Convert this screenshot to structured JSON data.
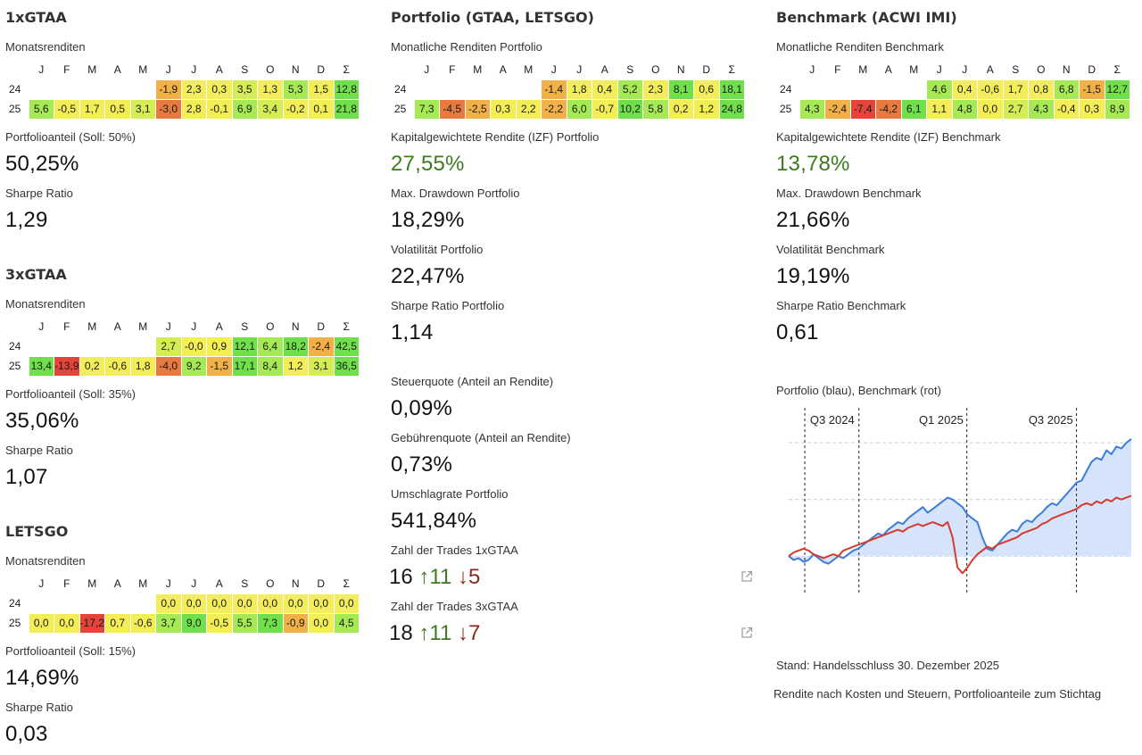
{
  "months": [
    "J",
    "F",
    "M",
    "A",
    "M",
    "J",
    "J",
    "A",
    "S",
    "O",
    "N",
    "D",
    "Σ"
  ],
  "heat_colors": {
    "deep_red": "#e4453a",
    "red_orange": "#e8793f",
    "orange": "#f1b048",
    "yellow": "#f3ee57",
    "yellow_green": "#d5ec55",
    "light_green": "#a5e955",
    "green": "#6fe04a"
  },
  "gtaa1": {
    "title": "1xGTAA",
    "monthly_label": "Monatsrenditen",
    "rows": [
      {
        "year": "24",
        "cells": [
          "",
          "",
          "",
          "",
          "",
          "-1,9",
          "2,3",
          "0,3",
          "3,5",
          "1,3",
          "5,3",
          "1,5",
          "12,8"
        ],
        "colors": [
          "",
          "",
          "",
          "",
          "",
          "orange",
          "yellow",
          "yellow",
          "yellow_green",
          "yellow",
          "light_green",
          "yellow",
          "green"
        ]
      },
      {
        "year": "25",
        "cells": [
          "5,6",
          "-0,5",
          "1,7",
          "0,5",
          "3,1",
          "-3,0",
          "2,8",
          "-0,1",
          "6,9",
          "3,4",
          "-0,2",
          "0,1",
          "21,8"
        ],
        "colors": [
          "light_green",
          "yellow",
          "yellow",
          "yellow",
          "yellow_green",
          "red_orange",
          "yellow",
          "yellow",
          "light_green",
          "yellow_green",
          "yellow",
          "yellow",
          "green"
        ]
      }
    ],
    "share_label": "Portfolioanteil (Soll: 50%)",
    "share_value": "50,25%",
    "sharpe_label": "Sharpe Ratio",
    "sharpe_value": "1,29"
  },
  "gtaa3": {
    "title": "3xGTAA",
    "monthly_label": "Monatsrenditen",
    "rows": [
      {
        "year": "24",
        "cells": [
          "",
          "",
          "",
          "",
          "",
          "2,7",
          "-0,0",
          "0,9",
          "12,1",
          "6,4",
          "18,2",
          "-2,4",
          "42,5"
        ],
        "colors": [
          "",
          "",
          "",
          "",
          "",
          "yellow_green",
          "yellow",
          "yellow",
          "green",
          "light_green",
          "green",
          "orange",
          "green"
        ]
      },
      {
        "year": "25",
        "cells": [
          "13,4",
          "-13,9",
          "0,2",
          "-0,6",
          "1,8",
          "-4,0",
          "9,2",
          "-1,5",
          "17,1",
          "8,4",
          "1,2",
          "3,1",
          "36,5"
        ],
        "colors": [
          "green",
          "deep_red",
          "yellow",
          "yellow",
          "yellow",
          "red_orange",
          "light_green",
          "orange",
          "green",
          "light_green",
          "yellow",
          "yellow_green",
          "green"
        ]
      }
    ],
    "share_label": "Portfolioanteil (Soll: 35%)",
    "share_value": "35,06%",
    "sharpe_label": "Sharpe Ratio",
    "sharpe_value": "1,07"
  },
  "letsgo": {
    "title": "LETSGO",
    "monthly_label": "Monatsrenditen",
    "rows": [
      {
        "year": "24",
        "cells": [
          "",
          "",
          "",
          "",
          "",
          "0,0",
          "0,0",
          "0,0",
          "0,0",
          "0,0",
          "0,0",
          "0,0",
          "0,0"
        ],
        "colors": [
          "",
          "",
          "",
          "",
          "",
          "yellow",
          "yellow",
          "yellow",
          "yellow",
          "yellow",
          "yellow",
          "yellow",
          "yellow"
        ]
      },
      {
        "year": "25",
        "cells": [
          "0,0",
          "0,0",
          "-17,2",
          "0,7",
          "-0,6",
          "3,7",
          "9,0",
          "-0,5",
          "5,5",
          "7,3",
          "-0,9",
          "0,0",
          "4,5"
        ],
        "colors": [
          "yellow",
          "yellow",
          "deep_red",
          "yellow",
          "yellow",
          "light_green",
          "green",
          "yellow",
          "light_green",
          "green",
          "orange",
          "yellow",
          "light_green"
        ]
      }
    ],
    "share_label": "Portfolioanteil (Soll: 15%)",
    "share_value": "14,69%",
    "sharpe_label": "Sharpe Ratio",
    "sharpe_value": "0,03"
  },
  "portfolio": {
    "title": "Portfolio (GTAA, LETSGO)",
    "monthly_label": "Monatliche Renditen Portfolio",
    "rows": [
      {
        "year": "24",
        "cells": [
          "",
          "",
          "",
          "",
          "",
          "-1,4",
          "1,8",
          "0,4",
          "5,2",
          "2,3",
          "8,1",
          "0,6",
          "18,1"
        ],
        "colors": [
          "",
          "",
          "",
          "",
          "",
          "orange",
          "yellow",
          "yellow",
          "light_green",
          "yellow",
          "green",
          "yellow",
          "green"
        ]
      },
      {
        "year": "25",
        "cells": [
          "7,3",
          "-4,5",
          "-2,5",
          "0,3",
          "2,2",
          "-2,2",
          "6,0",
          "-0,7",
          "10,2",
          "5,8",
          "0,2",
          "1,2",
          "24,8"
        ],
        "colors": [
          "light_green",
          "red_orange",
          "orange",
          "yellow",
          "yellow",
          "orange",
          "light_green",
          "yellow",
          "green",
          "light_green",
          "yellow",
          "yellow",
          "green"
        ]
      }
    ],
    "irr_label": "Kapitalgewichtete Rendite (IZF) Portfolio",
    "irr_value": "27,55%",
    "dd_label": "Max. Drawdown Portfolio",
    "dd_value": "18,29%",
    "vol_label": "Volatilität Portfolio",
    "vol_value": "22,47%",
    "sharpe_label": "Sharpe Ratio Portfolio",
    "sharpe_value": "1,14",
    "tax_label": "Steuerquote (Anteil an Rendite)",
    "tax_value": "0,09%",
    "fee_label": "Gebührenquote (Anteil an Rendite)",
    "fee_value": "0,73%",
    "turnover_label": "Umschlagrate Portfolio",
    "turnover_value": "541,84%",
    "trades1_label": "Zahl der Trades 1xGTAA",
    "trades1_total": "16",
    "trades1_up": "↑11",
    "trades1_down": "↓5",
    "trades3_label": "Zahl der Trades 3xGTAA",
    "trades3_total": "18",
    "trades3_up": "↑11",
    "trades3_down": "↓7"
  },
  "benchmark": {
    "title": "Benchmark (ACWI IMI)",
    "monthly_label": "Monatliche Renditen Benchmark",
    "rows": [
      {
        "year": "24",
        "cells": [
          "",
          "",
          "",
          "",
          "",
          "4,6",
          "0,4",
          "-0,6",
          "1,7",
          "0,8",
          "6,8",
          "-1,5",
          "12,7"
        ],
        "colors": [
          "",
          "",
          "",
          "",
          "",
          "light_green",
          "yellow",
          "yellow",
          "yellow",
          "yellow",
          "light_green",
          "orange",
          "green"
        ]
      },
      {
        "year": "25",
        "cells": [
          "4,3",
          "-2,4",
          "-7,4",
          "-4,2",
          "6,1",
          "1,1",
          "4,8",
          "0,0",
          "2,7",
          "4,3",
          "-0,4",
          "0,3",
          "8,9"
        ],
        "colors": [
          "light_green",
          "orange",
          "deep_red",
          "red_orange",
          "green",
          "yellow",
          "light_green",
          "yellow",
          "yellow_green",
          "light_green",
          "yellow",
          "yellow",
          "light_green"
        ]
      }
    ],
    "irr_label": "Kapitalgewichtete Rendite (IZF) Benchmark",
    "irr_value": "13,78%",
    "dd_label": "Max. Drawdown Benchmark",
    "dd_value": "21,66%",
    "vol_label": "Volatilität Benchmark",
    "vol_value": "19,19%",
    "sharpe_label": "Sharpe Ratio Benchmark",
    "sharpe_value": "0,61",
    "chart_title": "Portfolio (blau), Benchmark (rot)",
    "stand_note": "Stand: Handelsschluss 30. Dezember 2025",
    "footer_note": "Rendite nach Kosten und Steuern, Portfolioanteile zum Stichtag"
  },
  "chart_data": {
    "type": "line",
    "title": "Portfolio (blau), Benchmark (rot)",
    "quarter_labels": [
      "Q3 2024",
      "Q1 2025",
      "Q3 2025"
    ],
    "series": [
      {
        "name": "Portfolio",
        "color": "#3b7dd8",
        "fill": "#d6e4fb",
        "values": [
          100,
          98,
          99,
          97,
          98,
          101,
          99,
          97,
          96,
          98,
          100,
          99,
          101,
          103,
          104,
          106,
          108,
          110,
          112,
          111,
          114,
          116,
          118,
          117,
          120,
          122,
          124,
          126,
          123,
          125,
          127,
          129,
          131,
          130,
          128,
          126,
          122,
          120,
          118,
          110,
          104,
          103,
          106,
          109,
          112,
          114,
          113,
          117,
          119,
          118,
          121,
          123,
          126,
          128,
          127,
          130,
          133,
          136,
          139,
          140,
          145,
          150,
          152,
          151,
          156,
          154,
          158,
          157,
          160,
          162
        ]
      },
      {
        "name": "Benchmark",
        "color": "#d63a2e",
        "values": [
          100,
          102,
          103,
          104,
          103,
          101,
          100,
          99,
          100,
          101,
          100,
          103,
          104,
          105,
          106,
          107,
          108,
          109,
          110,
          111,
          112,
          113,
          114,
          113,
          115,
          116,
          117,
          116,
          117,
          118,
          117,
          116,
          118,
          110,
          94,
          91,
          94,
          98,
          101,
          103,
          105,
          104,
          106,
          107,
          108,
          109,
          110,
          112,
          113,
          114,
          115,
          117,
          118,
          120,
          121,
          122,
          123,
          124,
          125,
          127,
          128,
          127,
          129,
          128,
          130,
          129,
          131,
          130,
          131,
          132
        ]
      }
    ],
    "xlabel": "",
    "ylabel": "",
    "grid": true
  }
}
